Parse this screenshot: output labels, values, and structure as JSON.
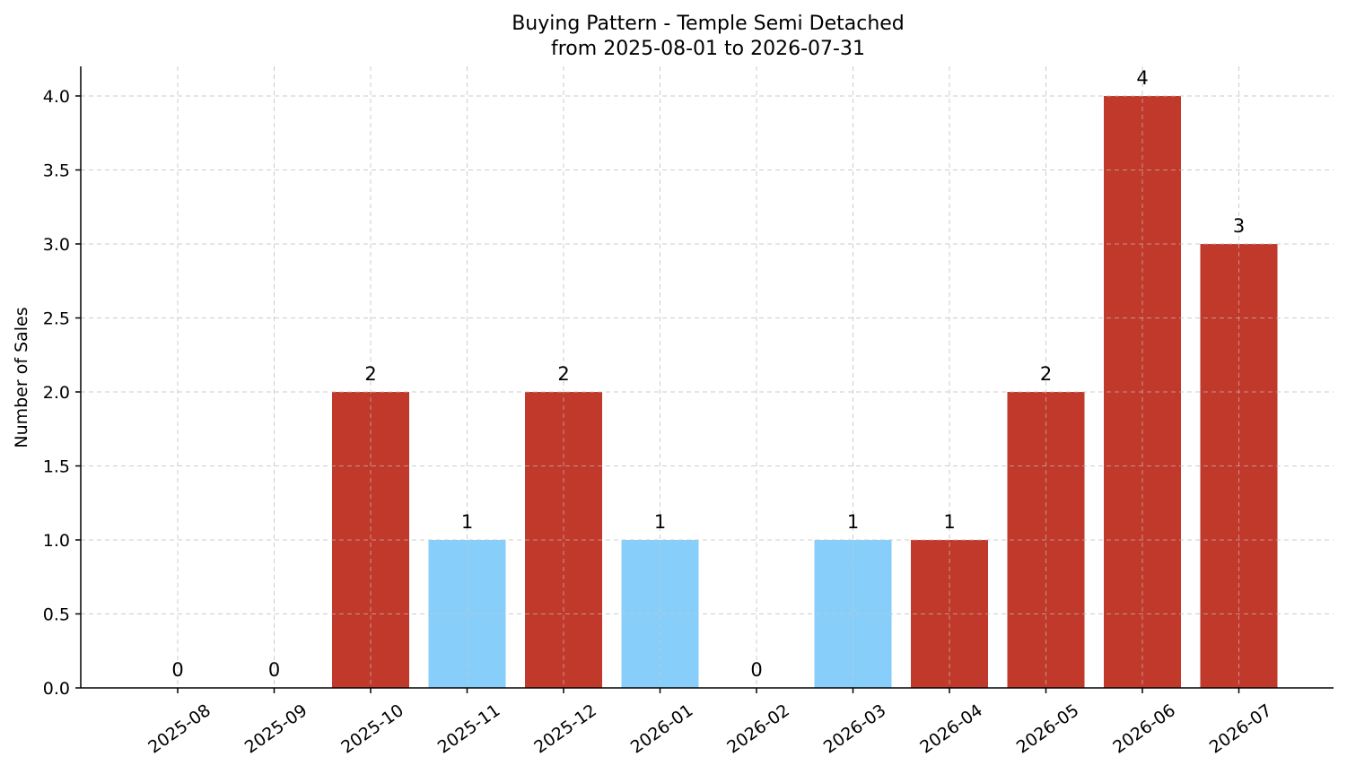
{
  "chart_data": {
    "type": "bar",
    "title": "Buying Pattern - Temple Semi Detached",
    "subtitle": "from 2025-08-01 to 2026-07-31",
    "xlabel": "",
    "ylabel": "Number of Sales",
    "categories": [
      "2025-08",
      "2025-09",
      "2025-10",
      "2025-11",
      "2025-12",
      "2026-01",
      "2026-02",
      "2026-03",
      "2026-04",
      "2026-05",
      "2026-06",
      "2026-07"
    ],
    "values": [
      0,
      0,
      2,
      1,
      2,
      1,
      0,
      1,
      1,
      2,
      4,
      3
    ],
    "bar_colors": [
      "#c0392b",
      "#c0392b",
      "#c0392b",
      "#87cefa",
      "#c0392b",
      "#87cefa",
      "#c0392b",
      "#87cefa",
      "#c0392b",
      "#c0392b",
      "#c0392b",
      "#c0392b"
    ],
    "ylim": [
      0,
      4.2
    ],
    "yticks": [
      "0.0",
      "0.5",
      "1.0",
      "1.5",
      "2.0",
      "2.5",
      "3.0",
      "3.5",
      "4.0"
    ],
    "grid": true,
    "legend": "none"
  }
}
